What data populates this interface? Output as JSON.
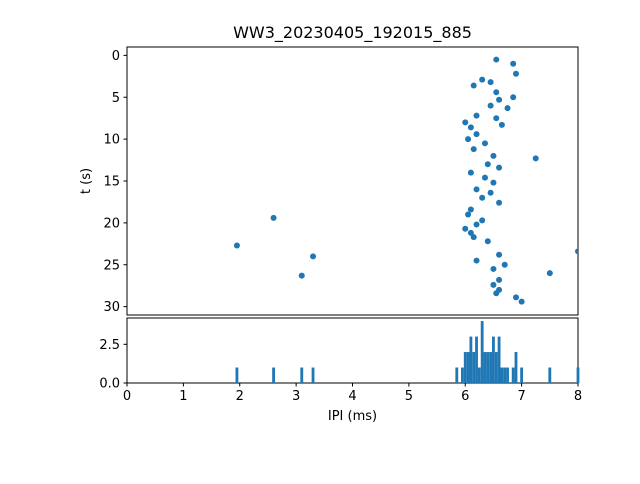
{
  "chart_data": [
    {
      "type": "scatter",
      "title": "WW3_20230405_192015_885",
      "xlabel": "",
      "ylabel": "t (s)",
      "xlim": [
        0,
        8
      ],
      "ylim": [
        -1,
        31
      ],
      "y_inverted": true,
      "ytick_values": [
        0,
        5,
        10,
        15,
        20,
        25,
        30
      ],
      "ytick_labels": [
        "0",
        "5",
        "10",
        "15",
        "20",
        "25",
        "30"
      ],
      "marker_color": "#1f77b4",
      "grid": false,
      "legend": "none",
      "points": [
        [
          6.55,
          0.5
        ],
        [
          6.85,
          1.0
        ],
        [
          6.9,
          2.2
        ],
        [
          6.3,
          2.9
        ],
        [
          6.45,
          3.2
        ],
        [
          6.15,
          3.6
        ],
        [
          6.55,
          4.4
        ],
        [
          6.85,
          5.0
        ],
        [
          6.6,
          5.3
        ],
        [
          6.45,
          6.0
        ],
        [
          6.75,
          6.3
        ],
        [
          6.2,
          7.2
        ],
        [
          6.55,
          7.5
        ],
        [
          6.0,
          8.0
        ],
        [
          6.65,
          8.3
        ],
        [
          6.1,
          8.6
        ],
        [
          6.2,
          9.4
        ],
        [
          6.05,
          10.0
        ],
        [
          6.35,
          10.5
        ],
        [
          6.15,
          11.2
        ],
        [
          6.5,
          12.0
        ],
        [
          7.25,
          12.3
        ],
        [
          6.4,
          13.0
        ],
        [
          6.6,
          13.4
        ],
        [
          6.1,
          14.0
        ],
        [
          6.35,
          14.6
        ],
        [
          6.5,
          15.2
        ],
        [
          6.2,
          16.0
        ],
        [
          6.45,
          16.4
        ],
        [
          6.3,
          17.0
        ],
        [
          6.6,
          17.6
        ],
        [
          6.1,
          18.4
        ],
        [
          6.05,
          19.0
        ],
        [
          2.6,
          19.4
        ],
        [
          6.3,
          19.7
        ],
        [
          6.2,
          20.2
        ],
        [
          6.0,
          20.7
        ],
        [
          6.1,
          21.2
        ],
        [
          6.15,
          21.7
        ],
        [
          6.4,
          22.2
        ],
        [
          1.95,
          22.7
        ],
        [
          8.0,
          23.4
        ],
        [
          6.6,
          23.8
        ],
        [
          3.3,
          24.0
        ],
        [
          6.2,
          24.5
        ],
        [
          6.7,
          25.0
        ],
        [
          6.5,
          25.5
        ],
        [
          7.5,
          26.0
        ],
        [
          3.1,
          26.3
        ],
        [
          6.6,
          26.8
        ],
        [
          6.5,
          27.4
        ],
        [
          6.6,
          28.0
        ],
        [
          6.55,
          28.4
        ],
        [
          6.9,
          28.9
        ],
        [
          7.0,
          29.4
        ]
      ]
    },
    {
      "type": "bar",
      "title": "",
      "xlabel": "IPI (ms)",
      "ylabel": "",
      "xlim": [
        0,
        8
      ],
      "ylim": [
        0,
        4.2
      ],
      "ytick_values": [
        0,
        2.5
      ],
      "ytick_labels": [
        "0.0",
        "2.5"
      ],
      "xtick_values": [
        0,
        1,
        2,
        3,
        4,
        5,
        6,
        7,
        8
      ],
      "xtick_labels": [
        "0",
        "1",
        "2",
        "3",
        "4",
        "5",
        "6",
        "7",
        "8"
      ],
      "bar_color": "#1f77b4",
      "bar_width": 0.05,
      "grid": false,
      "bars": [
        [
          1.95,
          1
        ],
        [
          2.6,
          1
        ],
        [
          3.1,
          1
        ],
        [
          3.3,
          1
        ],
        [
          5.85,
          1
        ],
        [
          5.95,
          1
        ],
        [
          6.0,
          2
        ],
        [
          6.05,
          2
        ],
        [
          6.1,
          3
        ],
        [
          6.15,
          2
        ],
        [
          6.2,
          3
        ],
        [
          6.25,
          1
        ],
        [
          6.3,
          4
        ],
        [
          6.35,
          2
        ],
        [
          6.4,
          2
        ],
        [
          6.45,
          2
        ],
        [
          6.5,
          3
        ],
        [
          6.55,
          2
        ],
        [
          6.6,
          3
        ],
        [
          6.65,
          1
        ],
        [
          6.7,
          1
        ],
        [
          6.75,
          1
        ],
        [
          6.85,
          1
        ],
        [
          6.9,
          2
        ],
        [
          7.0,
          1
        ],
        [
          7.5,
          1
        ],
        [
          8.0,
          1
        ]
      ]
    }
  ]
}
